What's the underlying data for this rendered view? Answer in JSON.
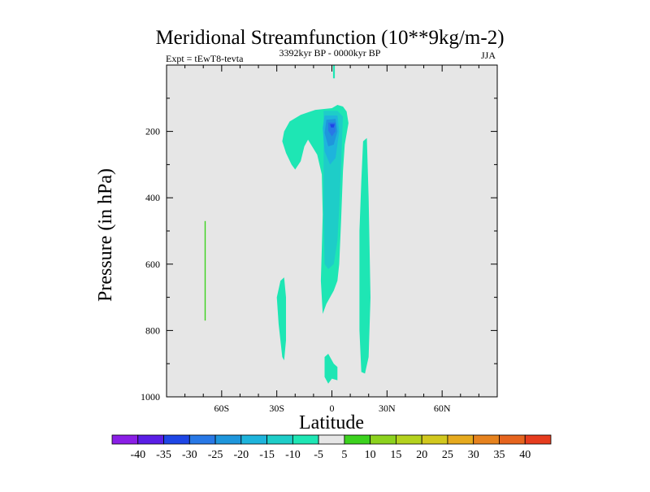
{
  "chart_data": {
    "type": "heatmap",
    "title": "Meridional Streamfunction (10**9kg/m-2)",
    "left_label": "Expt = tEwT8-tevta",
    "center_label": "3392kyr BP - 0000kyr BP",
    "right_label": "JJA",
    "xlabel": "Latitude",
    "ylabel": "Pressure (in hPa)",
    "xlim": [
      -90,
      90
    ],
    "ylim": [
      0,
      1000
    ],
    "y_inverted": true,
    "x_ticks": [
      {
        "value": -60,
        "label": "60S"
      },
      {
        "value": -30,
        "label": "30S"
      },
      {
        "value": 0,
        "label": "0"
      },
      {
        "value": 30,
        "label": "30N"
      },
      {
        "value": 60,
        "label": "60N"
      }
    ],
    "y_ticks": [
      {
        "value": 200,
        "label": "200"
      },
      {
        "value": 400,
        "label": "400"
      },
      {
        "value": 600,
        "label": "600"
      },
      {
        "value": 800,
        "label": "800"
      },
      {
        "value": 1000,
        "label": "1000"
      }
    ],
    "background_color": "#e6e6e6",
    "colorbar": {
      "levels": [
        "-40",
        "-35",
        "-30",
        "-25",
        "-20",
        "-15",
        "-10",
        "-5",
        "5",
        "10",
        "15",
        "20",
        "25",
        "30",
        "35",
        "40"
      ],
      "colors": [
        "#8a1ee6",
        "#5a1ee6",
        "#1e46e6",
        "#2878e6",
        "#1e96dc",
        "#1eb4dc",
        "#1ecdc8",
        "#1ee6b4",
        "#e6e6e6",
        "#3cd21e",
        "#8cd21e",
        "#b4d21e",
        "#d2c81e",
        "#e6aa1e",
        "#e6821e",
        "#e6641e",
        "#e63c1e"
      ]
    },
    "regions": [
      {
        "name": "shading-nh-narrow-jet",
        "level": "-10 to -5",
        "points": [
          [
            0.6,
            0
          ],
          [
            1.6,
            0
          ],
          [
            1.6,
            40
          ],
          [
            0.6,
            40
          ]
        ]
      },
      {
        "name": "shading-main-cell",
        "level": "-10 to -5",
        "points": [
          [
            0,
            130
          ],
          [
            3,
            120
          ],
          [
            6,
            125
          ],
          [
            8,
            140
          ],
          [
            9,
            175
          ],
          [
            7,
            240
          ],
          [
            6,
            320
          ],
          [
            5,
            470
          ],
          [
            4,
            600
          ],
          [
            3,
            650
          ],
          [
            1,
            680
          ],
          [
            -3,
            720
          ],
          [
            -5,
            750
          ],
          [
            -6,
            650
          ],
          [
            -5.5,
            550
          ],
          [
            -5,
            450
          ],
          [
            -5.5,
            330
          ],
          [
            -8,
            270
          ],
          [
            -13,
            225
          ],
          [
            -15,
            245
          ],
          [
            -17,
            290
          ],
          [
            -20,
            315
          ],
          [
            -22,
            300
          ],
          [
            -25,
            265
          ],
          [
            -27,
            230
          ],
          [
            -26,
            200
          ],
          [
            -23,
            170
          ],
          [
            -17,
            150
          ],
          [
            -9,
            135
          ]
        ]
      },
      {
        "name": "shading-core-15",
        "level": "-15 to -10",
        "points": [
          [
            -4.5,
            138
          ],
          [
            3,
            138
          ],
          [
            6,
            155
          ],
          [
            5,
            300
          ],
          [
            4,
            430
          ],
          [
            3,
            530
          ],
          [
            1,
            600
          ],
          [
            -2,
            615
          ],
          [
            -4,
            600
          ],
          [
            -4.5,
            450
          ]
        ]
      },
      {
        "name": "shading-core-20",
        "level": "-20 to -15",
        "points": [
          [
            -4,
            152
          ],
          [
            3,
            152
          ],
          [
            4,
            200
          ],
          [
            2,
            280
          ],
          [
            -1,
            300
          ],
          [
            -4,
            260
          ],
          [
            -5,
            190
          ]
        ]
      },
      {
        "name": "shading-core-25",
        "level": "-25 to -20",
        "points": [
          [
            -3,
            165
          ],
          [
            2,
            162
          ],
          [
            3,
            200
          ],
          [
            1,
            240
          ],
          [
            -2,
            245
          ],
          [
            -4,
            205
          ]
        ]
      },
      {
        "name": "shading-core-30",
        "level": "-30 to -25",
        "points": [
          [
            -2,
            173
          ],
          [
            2,
            173
          ],
          [
            2,
            200
          ],
          [
            0,
            215
          ],
          [
            -2,
            198
          ]
        ]
      },
      {
        "name": "shading-core-35",
        "level": "-35 to -30",
        "points": [
          [
            -1,
            178
          ],
          [
            1.5,
            178
          ],
          [
            1,
            188
          ],
          [
            -0.5,
            188
          ]
        ]
      },
      {
        "name": "shading-sh-subtropical-cell",
        "level": "-10 to -5",
        "points": [
          [
            -28,
            650
          ],
          [
            -26,
            640
          ],
          [
            -25,
            700
          ],
          [
            -25,
            830
          ],
          [
            -26,
            890
          ],
          [
            -27,
            880
          ],
          [
            -29,
            780
          ],
          [
            -30,
            700
          ]
        ]
      },
      {
        "name": "shading-nh-subtropical-cell",
        "level": "-10 to -5",
        "points": [
          [
            17,
            230
          ],
          [
            19,
            220
          ],
          [
            20,
            400
          ],
          [
            21,
            700
          ],
          [
            20,
            880
          ],
          [
            18,
            930
          ],
          [
            16,
            925
          ],
          [
            15,
            800
          ],
          [
            15,
            500
          ],
          [
            16,
            350
          ]
        ]
      },
      {
        "name": "shading-surface-equatorial",
        "level": "-10 to -5",
        "points": [
          [
            -4,
            880
          ],
          [
            -2,
            870
          ],
          [
            1,
            900
          ],
          [
            3,
            910
          ],
          [
            3,
            950
          ],
          [
            0,
            945
          ],
          [
            -2,
            960
          ],
          [
            -4,
            940
          ]
        ]
      },
      {
        "name": "shading-sh-positive-filament",
        "level": "5 to 10",
        "points": [
          [
            -69.3,
            470
          ],
          [
            -68.7,
            470
          ],
          [
            -68.7,
            770
          ],
          [
            -69.3,
            770
          ]
        ]
      }
    ]
  }
}
